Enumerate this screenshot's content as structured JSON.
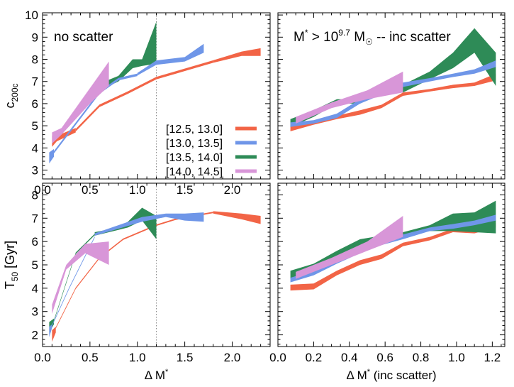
{
  "colors": {
    "r1": "#f26446",
    "r2": "#6f96e8",
    "r3": "#2e8b57",
    "r4": "#d896d8"
  },
  "legend": [
    "[12.5, 13.0]",
    "[13.0, 13.5]",
    "[13.5, 14.0]",
    "[14.0, 14.5]"
  ],
  "chart_data": [
    {
      "type": "area",
      "panel": "top-left",
      "annotation": "no scatter",
      "ylabel": "c",
      "ylabel_sub": "200c",
      "xlim": [
        0,
        2.4
      ],
      "ylim": [
        2.6,
        10.1
      ],
      "xticks": [
        "0.0",
        "0.5",
        "1.0",
        "1.5",
        "2.0"
      ],
      "yticks": [
        "3",
        "4",
        "5",
        "6",
        "7",
        "8",
        "9",
        "10"
      ],
      "vline": 1.2,
      "series": [
        {
          "name": "[12.5, 13.0]",
          "x": [
            0.1,
            0.15,
            0.35
          ],
          "lo": [
            4.05,
            4.3,
            4.7
          ],
          "hi": [
            4.55,
            4.55,
            4.9
          ]
        },
        {
          "name": "[12.5, 13.0]",
          "x": [
            0.35,
            0.6,
            0.9,
            1.2,
            1.4,
            1.8
          ],
          "lo": [
            4.8,
            5.9,
            6.5,
            7.15,
            7.4,
            7.9
          ],
          "hi": [
            4.8,
            5.9,
            6.5,
            7.15,
            7.4,
            7.9
          ]
        },
        {
          "name": "[12.5, 13.0]",
          "x": [
            1.8,
            2.1,
            2.3
          ],
          "lo": [
            7.85,
            8.15,
            8.15
          ],
          "hi": [
            7.95,
            8.35,
            8.5
          ]
        },
        {
          "name": "[13.0, 13.5]",
          "x": [
            0.07,
            0.12
          ],
          "lo": [
            3.3,
            3.6
          ],
          "hi": [
            3.8,
            3.95
          ]
        },
        {
          "name": "[13.0, 13.5]",
          "x": [
            0.12,
            0.6,
            0.8,
            1.0
          ],
          "lo": [
            3.8,
            6.5,
            7.1,
            7.3
          ],
          "hi": [
            3.8,
            6.5,
            7.1,
            7.3
          ]
        },
        {
          "name": "[13.0, 13.5]",
          "x": [
            1.0,
            1.2,
            1.5,
            1.7
          ],
          "lo": [
            7.3,
            7.75,
            7.9,
            8.3
          ],
          "hi": [
            7.35,
            7.95,
            8.1,
            8.7
          ]
        },
        {
          "name": "[13.5, 14.0]",
          "x": [
            0.6,
            0.8,
            0.95,
            1.05,
            1.2
          ],
          "lo": [
            6.6,
            7.0,
            7.6,
            7.7,
            7.8
          ],
          "hi": [
            6.9,
            7.25,
            8.0,
            8.0,
            9.7
          ]
        },
        {
          "name": "[14.0, 14.5]",
          "x": [
            0.1,
            0.2,
            0.5,
            0.7
          ],
          "lo": [
            4.2,
            4.6,
            6.0,
            6.8
          ],
          "hi": [
            4.7,
            4.9,
            6.7,
            7.9
          ]
        }
      ]
    },
    {
      "type": "area",
      "panel": "top-right",
      "annotation": "M* > 10^9.7 M☉ -- inc scatter",
      "xlim": [
        0,
        1.27
      ],
      "ylim": [
        2.6,
        10.1
      ],
      "series": [
        {
          "name": "[12.5, 13.0]",
          "x": [
            0.07,
            0.2,
            0.33,
            0.46,
            0.58,
            0.7,
            0.85,
            0.98,
            1.1,
            1.22
          ],
          "lo": [
            4.75,
            5.05,
            5.3,
            5.5,
            5.8,
            6.35,
            6.55,
            6.7,
            6.8,
            7.05
          ],
          "hi": [
            5.0,
            5.2,
            5.45,
            5.7,
            5.95,
            6.5,
            6.65,
            6.85,
            6.95,
            7.35
          ]
        },
        {
          "name": "[13.0, 13.5]",
          "x": [
            0.07,
            0.2,
            0.33,
            0.46,
            0.58,
            0.7,
            0.85,
            0.98,
            1.1,
            1.22
          ],
          "lo": [
            4.95,
            5.1,
            5.35,
            6.0,
            6.4,
            6.75,
            7.0,
            7.2,
            7.35,
            7.65
          ],
          "hi": [
            5.15,
            5.25,
            5.55,
            6.2,
            6.6,
            6.95,
            7.15,
            7.35,
            7.55,
            7.95
          ]
        },
        {
          "name": "[13.5, 14.0]",
          "x": [
            0.07,
            0.2,
            0.33,
            0.46,
            0.58,
            0.7,
            0.85,
            0.98,
            1.1,
            1.22
          ],
          "lo": [
            4.95,
            5.4,
            6.0,
            6.0,
            6.55,
            6.5,
            7.1,
            7.6,
            8.3,
            6.8
          ],
          "hi": [
            5.3,
            5.7,
            6.2,
            6.2,
            6.85,
            6.85,
            7.45,
            8.3,
            9.4,
            8.3
          ]
        },
        {
          "name": "[14.0, 14.5]",
          "x": [
            0.1,
            0.3,
            0.5,
            0.7
          ],
          "lo": [
            5.1,
            5.8,
            6.2,
            6.5
          ],
          "hi": [
            5.4,
            6.05,
            6.6,
            7.45
          ]
        }
      ]
    },
    {
      "type": "area",
      "panel": "bottom-left",
      "xlabel": "Δ M*",
      "ylabel": "T",
      "ylabel_sub": "50",
      "ylabel_unit": " [Gyr]",
      "xlim": [
        0,
        2.4
      ],
      "ylim": [
        1.5,
        8.5
      ],
      "xticks": [
        "0.0",
        "0.5",
        "1.0",
        "1.5",
        "2.0"
      ],
      "yticks": [
        "2",
        "3",
        "4",
        "5",
        "6",
        "7",
        "8"
      ],
      "vline": 1.2,
      "series": [
        {
          "name": "[12.5, 13.0]",
          "x": [
            0.1,
            0.14
          ],
          "lo": [
            1.7,
            2.1
          ],
          "hi": [
            2.2,
            2.35
          ]
        },
        {
          "name": "[12.5, 13.0]",
          "x": [
            0.14,
            0.35,
            0.6,
            0.85,
            1.2,
            1.4,
            1.8
          ],
          "lo": [
            2.3,
            4.0,
            5.3,
            6.1,
            6.7,
            6.95,
            7.25
          ],
          "hi": [
            2.3,
            4.0,
            5.3,
            6.1,
            6.7,
            6.95,
            7.25
          ]
        },
        {
          "name": "[12.5, 13.0]",
          "x": [
            1.8,
            2.1,
            2.3
          ],
          "lo": [
            7.2,
            6.95,
            6.75
          ],
          "hi": [
            7.3,
            7.2,
            7.1
          ]
        },
        {
          "name": "[13.0, 13.5]",
          "x": [
            0.07,
            0.1
          ],
          "lo": [
            1.9,
            2.3
          ],
          "hi": [
            2.35,
            2.45
          ]
        },
        {
          "name": "[13.0, 13.5]",
          "x": [
            0.1,
            0.28,
            0.55
          ],
          "lo": [
            2.4,
            4.0,
            6.2
          ],
          "hi": [
            2.4,
            4.0,
            6.2
          ]
        },
        {
          "name": "[13.0, 13.5]",
          "x": [
            0.55,
            0.8,
            1.05,
            1.3,
            1.5,
            1.7
          ],
          "lo": [
            6.25,
            6.55,
            6.85,
            7.05,
            6.9,
            6.85
          ],
          "hi": [
            6.35,
            6.7,
            7.05,
            7.2,
            7.2,
            7.25
          ]
        },
        {
          "name": "[13.5, 14.0]",
          "x": [
            0.07,
            0.12
          ],
          "lo": [
            2.1,
            2.45
          ],
          "hi": [
            2.55,
            2.7
          ]
        },
        {
          "name": "[13.5, 14.0]",
          "x": [
            0.12,
            0.35,
            0.55
          ],
          "lo": [
            2.6,
            5.5,
            6.3
          ],
          "hi": [
            2.6,
            5.5,
            6.3
          ]
        },
        {
          "name": "[13.5, 14.0]",
          "x": [
            0.55,
            0.8,
            0.9,
            1.05,
            1.2
          ],
          "lo": [
            6.25,
            6.5,
            6.6,
            6.9,
            6.1
          ],
          "hi": [
            6.4,
            6.6,
            6.85,
            7.45,
            7.1
          ]
        },
        {
          "name": "[14.0, 14.5]",
          "x": [
            0.1,
            0.25,
            0.45,
            0.7
          ],
          "lo": [
            2.9,
            4.8,
            5.5,
            5.0
          ],
          "hi": [
            3.3,
            5.0,
            5.9,
            6.0
          ]
        }
      ]
    },
    {
      "type": "area",
      "panel": "bottom-right",
      "xlabel": "Δ M* (inc scatter)",
      "xlim": [
        0,
        1.27
      ],
      "ylim": [
        1.5,
        8.5
      ],
      "xticks": [
        "0.0",
        "0.2",
        "0.4",
        "0.6",
        "0.8",
        "1.0",
        "1.2"
      ],
      "series": [
        {
          "name": "[12.5, 13.0]",
          "x": [
            0.07,
            0.2,
            0.33,
            0.46,
            0.58,
            0.7,
            0.85,
            0.98,
            1.1,
            1.22
          ],
          "lo": [
            3.9,
            3.95,
            4.55,
            5.0,
            5.25,
            5.8,
            6.05,
            6.4,
            6.35,
            6.6
          ],
          "hi": [
            4.15,
            4.2,
            4.75,
            5.2,
            5.45,
            5.95,
            6.2,
            6.55,
            6.5,
            6.8
          ]
        },
        {
          "name": "[13.0, 13.5]",
          "x": [
            0.07,
            0.2,
            0.33,
            0.46,
            0.58,
            0.7,
            0.85,
            0.98,
            1.1,
            1.22
          ],
          "lo": [
            4.25,
            4.55,
            5.05,
            5.5,
            5.85,
            6.1,
            6.45,
            6.55,
            6.7,
            6.9
          ],
          "hi": [
            4.45,
            4.75,
            5.25,
            5.7,
            6.05,
            6.3,
            6.6,
            6.75,
            6.9,
            7.15
          ]
        },
        {
          "name": "[13.5, 14.0]",
          "x": [
            0.07,
            0.2,
            0.33,
            0.46,
            0.58,
            0.7,
            0.85,
            0.98,
            1.1,
            1.22
          ],
          "lo": [
            4.4,
            4.75,
            5.3,
            5.85,
            6.05,
            6.2,
            6.45,
            6.45,
            6.4,
            6.35
          ],
          "hi": [
            4.75,
            5.05,
            5.6,
            6.1,
            6.25,
            6.4,
            6.7,
            7.2,
            7.25,
            7.75
          ]
        },
        {
          "name": "[14.0, 14.5]",
          "x": [
            0.1,
            0.3,
            0.5,
            0.7
          ],
          "lo": [
            4.4,
            5.0,
            5.6,
            6.2
          ],
          "hi": [
            4.7,
            5.3,
            6.0,
            7.1
          ]
        }
      ]
    }
  ]
}
